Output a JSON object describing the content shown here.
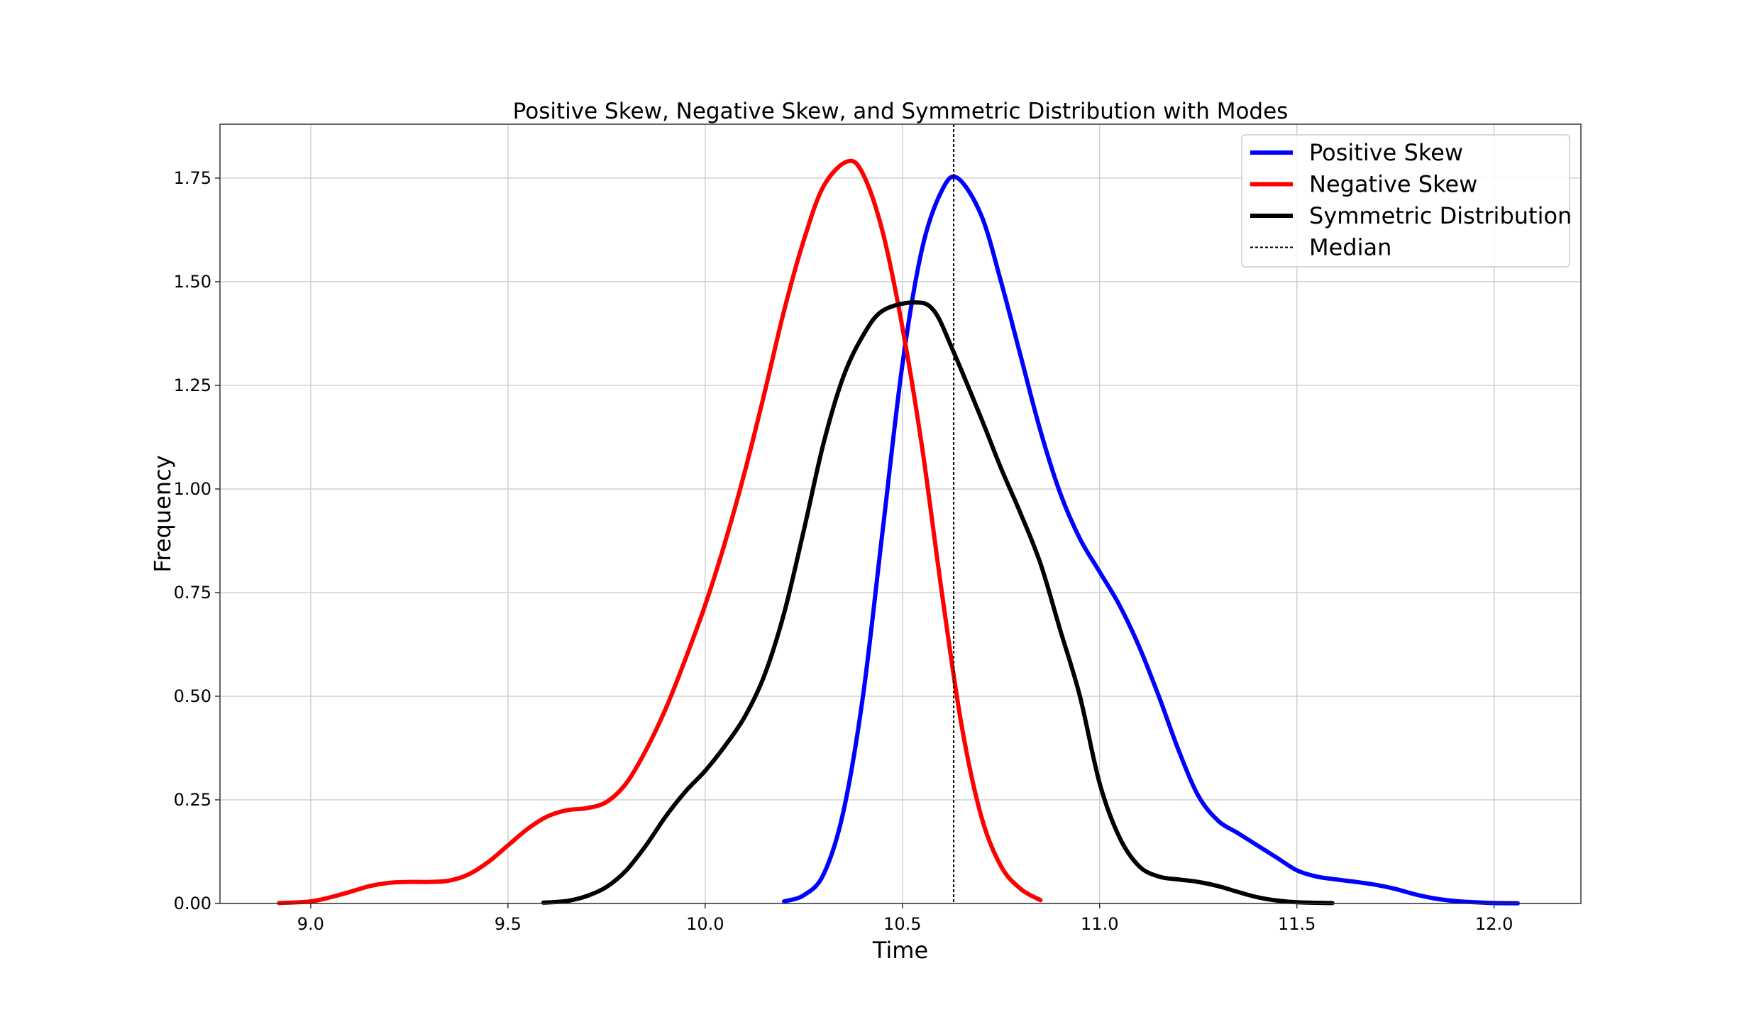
{
  "chart_data": {
    "type": "line",
    "title": "Positive Skew, Negative Skew, and Symmetric Distribution with Modes",
    "xlabel": "Time",
    "ylabel": "Frequency",
    "xlim": [
      8.77,
      12.22
    ],
    "ylim": [
      0.0,
      1.88
    ],
    "x_ticks": [
      9.0,
      9.5,
      10.0,
      10.5,
      11.0,
      11.5,
      12.0
    ],
    "x_tick_labels": [
      "9.0",
      "9.5",
      "10.0",
      "10.5",
      "11.0",
      "11.5",
      "12.0"
    ],
    "y_ticks": [
      0.0,
      0.25,
      0.5,
      0.75,
      1.0,
      1.25,
      1.5,
      1.75
    ],
    "y_tick_labels": [
      "0.00",
      "0.25",
      "0.50",
      "0.75",
      "1.00",
      "1.25",
      "1.50",
      "1.75"
    ],
    "grid": true,
    "legend_position": "top-right",
    "median": {
      "name": "Median",
      "x": 10.63,
      "color": "#000000"
    },
    "series": [
      {
        "name": "Positive Skew",
        "color": "#0000ff",
        "points": [
          [
            10.2,
            0.005
          ],
          [
            10.25,
            0.02
          ],
          [
            10.3,
            0.07
          ],
          [
            10.35,
            0.22
          ],
          [
            10.4,
            0.5
          ],
          [
            10.45,
            0.9
          ],
          [
            10.5,
            1.3
          ],
          [
            10.55,
            1.58
          ],
          [
            10.6,
            1.72
          ],
          [
            10.64,
            1.75
          ],
          [
            10.7,
            1.66
          ],
          [
            10.75,
            1.5
          ],
          [
            10.8,
            1.32
          ],
          [
            10.85,
            1.14
          ],
          [
            10.9,
            0.99
          ],
          [
            10.95,
            0.88
          ],
          [
            11.0,
            0.8
          ],
          [
            11.05,
            0.72
          ],
          [
            11.1,
            0.62
          ],
          [
            11.15,
            0.5
          ],
          [
            11.2,
            0.37
          ],
          [
            11.25,
            0.26
          ],
          [
            11.3,
            0.2
          ],
          [
            11.35,
            0.17
          ],
          [
            11.4,
            0.14
          ],
          [
            11.45,
            0.11
          ],
          [
            11.5,
            0.08
          ],
          [
            11.55,
            0.065
          ],
          [
            11.6,
            0.058
          ],
          [
            11.65,
            0.052
          ],
          [
            11.7,
            0.045
          ],
          [
            11.75,
            0.035
          ],
          [
            11.8,
            0.022
          ],
          [
            11.85,
            0.012
          ],
          [
            11.9,
            0.006
          ],
          [
            11.95,
            0.003
          ],
          [
            12.0,
            0.001
          ],
          [
            12.06,
            0.0005
          ]
        ]
      },
      {
        "name": "Negative Skew",
        "color": "#ff0000",
        "points": [
          [
            8.92,
            0.001
          ],
          [
            9.0,
            0.005
          ],
          [
            9.05,
            0.015
          ],
          [
            9.1,
            0.028
          ],
          [
            9.15,
            0.042
          ],
          [
            9.2,
            0.05
          ],
          [
            9.25,
            0.052
          ],
          [
            9.3,
            0.052
          ],
          [
            9.35,
            0.055
          ],
          [
            9.4,
            0.07
          ],
          [
            9.45,
            0.1
          ],
          [
            9.5,
            0.14
          ],
          [
            9.55,
            0.18
          ],
          [
            9.6,
            0.21
          ],
          [
            9.65,
            0.225
          ],
          [
            9.7,
            0.23
          ],
          [
            9.75,
            0.245
          ],
          [
            9.8,
            0.29
          ],
          [
            9.85,
            0.37
          ],
          [
            9.9,
            0.47
          ],
          [
            9.95,
            0.59
          ],
          [
            10.0,
            0.72
          ],
          [
            10.05,
            0.87
          ],
          [
            10.1,
            1.04
          ],
          [
            10.15,
            1.23
          ],
          [
            10.2,
            1.43
          ],
          [
            10.25,
            1.6
          ],
          [
            10.3,
            1.73
          ],
          [
            10.36,
            1.79
          ],
          [
            10.4,
            1.76
          ],
          [
            10.45,
            1.62
          ],
          [
            10.5,
            1.39
          ],
          [
            10.55,
            1.1
          ],
          [
            10.6,
            0.75
          ],
          [
            10.65,
            0.43
          ],
          [
            10.7,
            0.21
          ],
          [
            10.75,
            0.09
          ],
          [
            10.8,
            0.035
          ],
          [
            10.85,
            0.008
          ]
        ]
      },
      {
        "name": "Symmetric Distribution",
        "color": "#000000",
        "points": [
          [
            9.59,
            0.002
          ],
          [
            9.65,
            0.006
          ],
          [
            9.7,
            0.018
          ],
          [
            9.75,
            0.04
          ],
          [
            9.8,
            0.08
          ],
          [
            9.85,
            0.14
          ],
          [
            9.9,
            0.21
          ],
          [
            9.95,
            0.27
          ],
          [
            10.0,
            0.32
          ],
          [
            10.05,
            0.38
          ],
          [
            10.1,
            0.45
          ],
          [
            10.15,
            0.55
          ],
          [
            10.2,
            0.7
          ],
          [
            10.25,
            0.9
          ],
          [
            10.3,
            1.11
          ],
          [
            10.35,
            1.27
          ],
          [
            10.4,
            1.37
          ],
          [
            10.45,
            1.43
          ],
          [
            10.53,
            1.45
          ],
          [
            10.58,
            1.43
          ],
          [
            10.63,
            1.33
          ],
          [
            10.7,
            1.17
          ],
          [
            10.75,
            1.05
          ],
          [
            10.8,
            0.94
          ],
          [
            10.85,
            0.82
          ],
          [
            10.9,
            0.66
          ],
          [
            10.95,
            0.5
          ],
          [
            11.0,
            0.29
          ],
          [
            11.05,
            0.16
          ],
          [
            11.1,
            0.09
          ],
          [
            11.15,
            0.065
          ],
          [
            11.2,
            0.058
          ],
          [
            11.25,
            0.052
          ],
          [
            11.3,
            0.042
          ],
          [
            11.35,
            0.028
          ],
          [
            11.4,
            0.015
          ],
          [
            11.45,
            0.007
          ],
          [
            11.5,
            0.003
          ],
          [
            11.59,
            0.001
          ]
        ]
      }
    ]
  }
}
